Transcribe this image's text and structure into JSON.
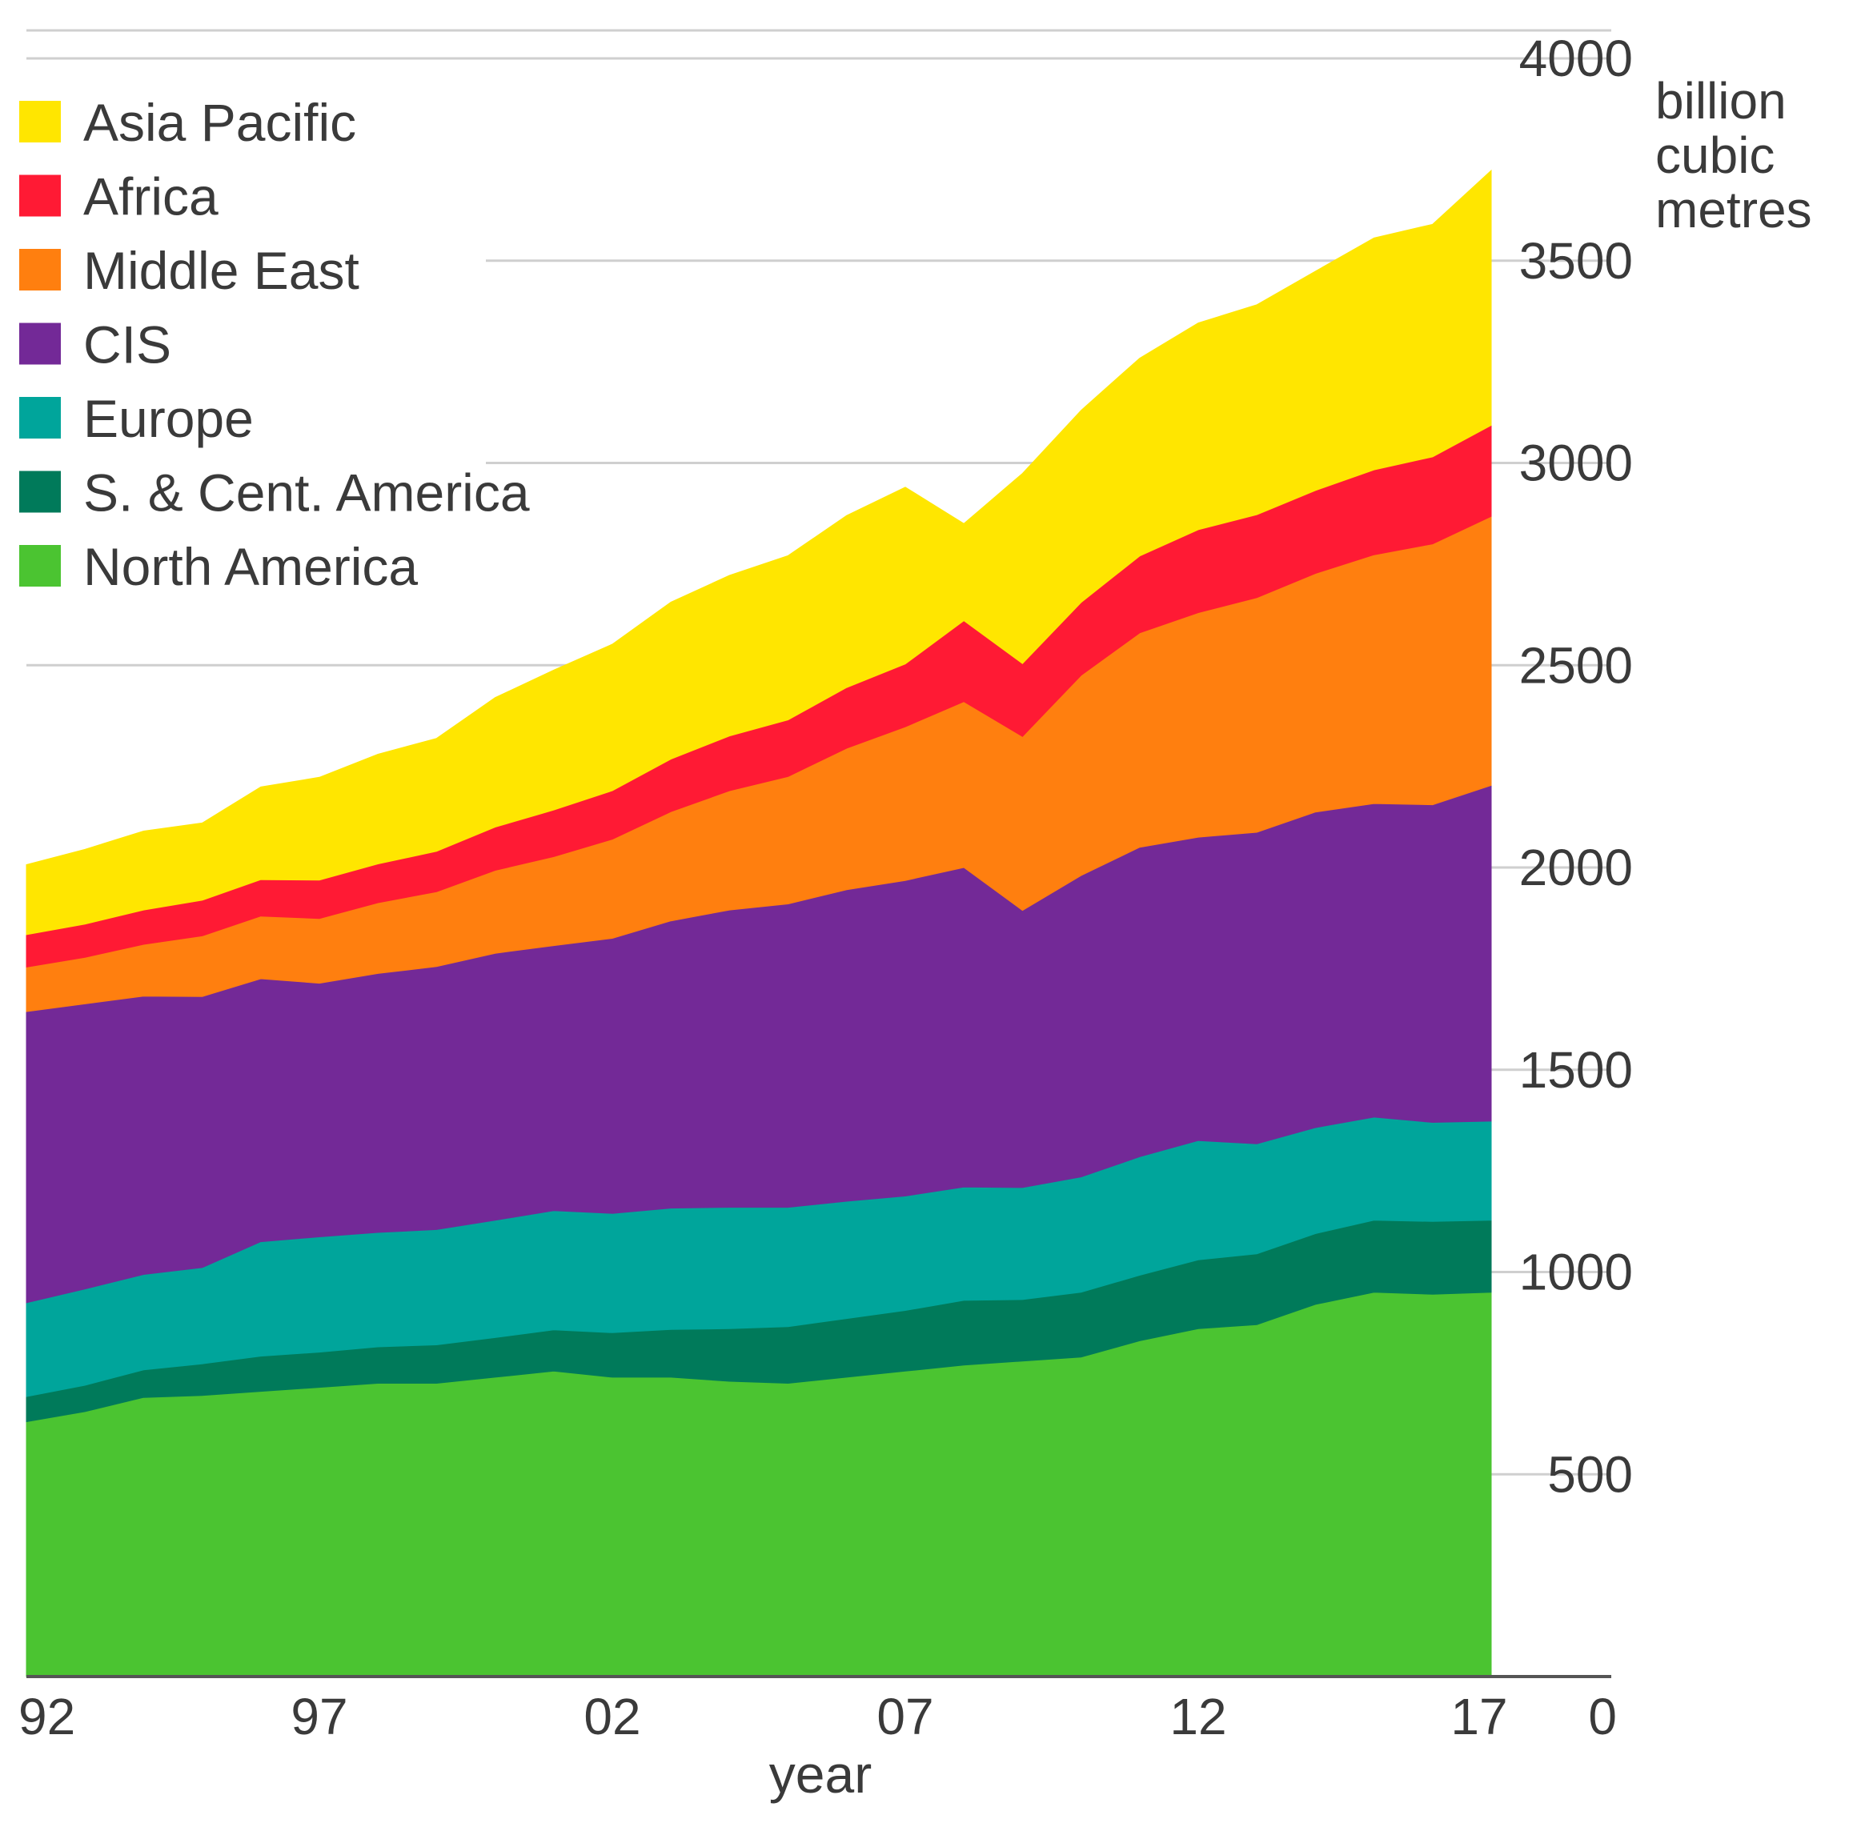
{
  "chart_data": {
    "type": "area",
    "stacked": true,
    "title": "",
    "xlabel": "year",
    "ylabel_lines": [
      "billion",
      "cubic",
      "metres"
    ],
    "x": [
      1992,
      1993,
      1994,
      1995,
      1996,
      1997,
      1998,
      1999,
      2000,
      2001,
      2002,
      2003,
      2004,
      2005,
      2006,
      2007,
      2008,
      2009,
      2010,
      2011,
      2012,
      2013,
      2014,
      2015,
      2016,
      2017
    ],
    "x_ticks": [
      {
        "value": 1992,
        "label": "92"
      },
      {
        "value": 1997,
        "label": "97"
      },
      {
        "value": 2002,
        "label": "02"
      },
      {
        "value": 2007,
        "label": "07"
      },
      {
        "value": 2012,
        "label": "12"
      },
      {
        "value": 2017,
        "label": "17"
      }
    ],
    "ylim": [
      0,
      4000
    ],
    "y_ticks": [
      {
        "value": 0,
        "label": "0"
      },
      {
        "value": 500,
        "label": "500"
      },
      {
        "value": 1000,
        "label": "1000"
      },
      {
        "value": 1500,
        "label": "1500"
      },
      {
        "value": 2000,
        "label": "2000"
      },
      {
        "value": 2500,
        "label": "2500"
      },
      {
        "value": 3000,
        "label": "3000"
      },
      {
        "value": 3500,
        "label": "3500"
      },
      {
        "value": 4000,
        "label": "4000"
      }
    ],
    "grid": true,
    "legend_position": "top-left",
    "series": [
      {
        "name": "North America",
        "color": "#4bc431",
        "values": [
          630,
          655,
          690,
          695,
          705,
          715,
          725,
          725,
          740,
          755,
          740,
          740,
          730,
          725,
          740,
          755,
          770,
          780,
          790,
          830,
          860,
          870,
          920,
          950,
          945,
          950
        ]
      },
      {
        "name": "S. & Cent. America",
        "color": "#007a5a",
        "values": [
          62,
          65,
          68,
          78,
          87,
          87,
          90,
          95,
          98,
          102,
          110,
          118,
          130,
          140,
          145,
          150,
          160,
          152,
          160,
          162,
          170,
          175,
          175,
          178,
          180,
          178
        ]
      },
      {
        "name": "Europe",
        "color": "#00a59b",
        "values": [
          232,
          238,
          236,
          238,
          283,
          285,
          283,
          285,
          290,
          295,
          295,
          300,
          300,
          295,
          290,
          283,
          280,
          277,
          285,
          293,
          295,
          272,
          262,
          255,
          245,
          245
        ]
      },
      {
        "name": "CIS",
        "color": "#732997",
        "values": [
          720,
          705,
          688,
          670,
          650,
          627,
          640,
          650,
          660,
          655,
          680,
          710,
          735,
          750,
          770,
          780,
          790,
          685,
          745,
          765,
          750,
          770,
          780,
          775,
          785,
          830
        ]
      },
      {
        "name": "Middle East",
        "color": "#ff7f0f",
        "values": [
          110,
          115,
          128,
          150,
          155,
          160,
          175,
          185,
          205,
          220,
          245,
          270,
          295,
          315,
          350,
          380,
          410,
          430,
          495,
          530,
          555,
          580,
          590,
          615,
          645,
          665
        ]
      },
      {
        "name": "Africa",
        "color": "#ff1a34",
        "values": [
          80,
          82,
          85,
          88,
          90,
          95,
          96,
          100,
          107,
          115,
          120,
          130,
          135,
          140,
          150,
          155,
          200,
          180,
          180,
          190,
          205,
          205,
          205,
          210,
          215,
          225
        ]
      },
      {
        "name": "Asia Pacific",
        "color": "#ffe600",
        "values": [
          173,
          185,
          195,
          191,
          229,
          254,
          271,
          279,
          320,
          346,
          362,
          388,
          397,
          406,
          425,
          437,
          240,
          470,
          475,
          489,
          511,
          519,
          542,
          573,
          575,
          630
        ]
      }
    ]
  }
}
